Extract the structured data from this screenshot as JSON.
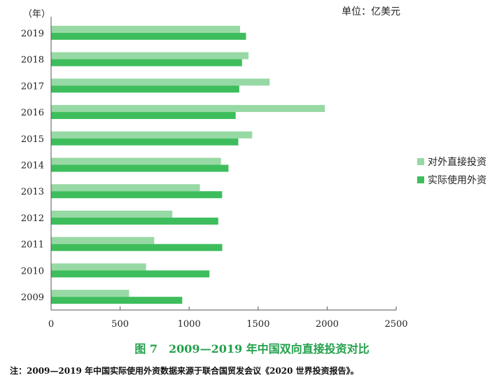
{
  "unit_label": "单位：亿美元",
  "y_axis_label": "（年）",
  "caption": "图 7　2009—2019 年中国双向直接投资对比",
  "note": "注：2009—2019 年中国实际使用外资数据来源于联合国贸发会议《2020 世界投资报告》。",
  "colors": {
    "outbound": "#97d9a4",
    "inbound": "#3ebd5c",
    "axis": "#555555"
  },
  "chart_data": {
    "type": "bar",
    "orientation": "horizontal",
    "categories": [
      "2019",
      "2018",
      "2017",
      "2016",
      "2015",
      "2014",
      "2013",
      "2012",
      "2011",
      "2010",
      "2009"
    ],
    "series": [
      {
        "name": "对外直接投资",
        "values": [
          1369,
          1430,
          1583,
          1983,
          1457,
          1231,
          1078,
          878,
          747,
          688,
          565
        ]
      },
      {
        "name": "实际使用外资",
        "values": [
          1412,
          1383,
          1363,
          1337,
          1356,
          1285,
          1239,
          1211,
          1240,
          1147,
          950
        ]
      }
    ],
    "xlim": [
      0,
      2500
    ],
    "xticks": [
      "0",
      "500",
      "1000",
      "1500",
      "2000",
      "2500"
    ],
    "ylabel": "（年）",
    "unit": "单位：亿美元",
    "legend_position": "right",
    "grid": false
  }
}
